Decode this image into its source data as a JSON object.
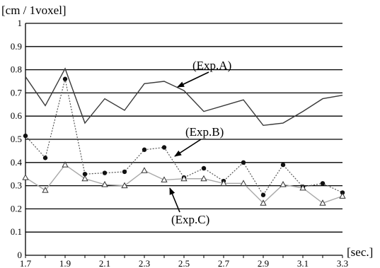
{
  "chart_data": {
    "type": "line",
    "ylabel": "[cm / 1voxel]",
    "xlabel": "[sec.]",
    "ylim": [
      0,
      1
    ],
    "yticks": [
      "0",
      "0.1",
      "0.2",
      "0.3",
      "0.4",
      "0.5",
      "0.6",
      "0.7",
      "0.8",
      "0.9",
      "1"
    ],
    "xlim": [
      1.7,
      3.3
    ],
    "xticks": [
      "1.7",
      "1.9",
      "2.1",
      "2.3",
      "2.5",
      "2.7",
      "2.9",
      "3.1",
      "3.3"
    ],
    "grid": "horizontal",
    "x": [
      1.7,
      1.8,
      1.9,
      2.0,
      2.1,
      2.2,
      2.3,
      2.4,
      2.5,
      2.6,
      2.7,
      2.8,
      2.9,
      3.0,
      3.1,
      3.2,
      3.3
    ],
    "series": [
      {
        "values": [
          0.77,
          0.645,
          0.805,
          0.57,
          0.675,
          0.625,
          0.74,
          0.75,
          0.71,
          0.62,
          0.645,
          0.67,
          0.56,
          0.57,
          0.62,
          0.675,
          0.69
        ],
        "style": "solid",
        "color": "#3a3a3a",
        "marker": "none"
      },
      {
        "values": [
          0.515,
          0.42,
          0.76,
          0.35,
          0.355,
          0.36,
          0.455,
          0.465,
          0.335,
          0.375,
          0.32,
          0.4,
          0.26,
          0.39,
          0.295,
          0.31,
          0.27
        ],
        "style": "dotted",
        "color": "#555555",
        "marker": "circle"
      },
      {
        "values": [
          0.335,
          0.28,
          0.39,
          0.33,
          0.305,
          0.3,
          0.365,
          0.325,
          0.33,
          0.33,
          0.31,
          0.31,
          0.225,
          0.305,
          0.29,
          0.225,
          0.255
        ],
        "style": "solid",
        "color": "#a8a8a8",
        "marker": "triangle"
      }
    ],
    "annotations": [
      {
        "text": "(Exp.A)",
        "series": 0,
        "x": 2.5
      },
      {
        "text": "(Exp.B)",
        "series": 1,
        "x": 2.4
      },
      {
        "text": "(Exp.C)",
        "series": 2,
        "x": 2.4
      }
    ]
  }
}
